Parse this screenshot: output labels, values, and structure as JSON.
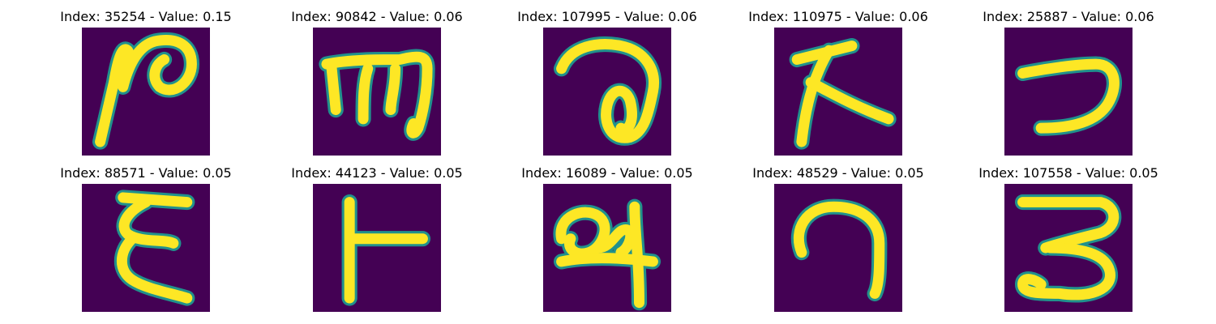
{
  "colors": {
    "background": "#440154",
    "stroke": "#fde725",
    "edge": "#21918c"
  },
  "panels": [
    {
      "title": "Index: 35254 - Value: 0.15",
      "glyph": "hook-loop-glyph"
    },
    {
      "title": "Index: 90842 - Value: 0.06",
      "glyph": "triple-stem-glyph"
    },
    {
      "title": "Index: 107995 - Value: 0.06",
      "glyph": "curl-loop-glyph"
    },
    {
      "title": "Index: 110975 - Value: 0.06",
      "glyph": "slanted-k-glyph"
    },
    {
      "title": "Index: 25887 - Value: 0.06",
      "glyph": "reverse-c-glyph"
    },
    {
      "title": "Index: 88571 - Value: 0.05",
      "glyph": "zigzag-glyph"
    },
    {
      "title": "Index: 44123 - Value: 0.05",
      "glyph": "t-bar-glyph"
    },
    {
      "title": "Index: 16089 - Value: 0.05",
      "glyph": "cursive-loop-glyph"
    },
    {
      "title": "Index: 48529 - Value: 0.05",
      "glyph": "arch-glyph"
    },
    {
      "title": "Index: 107558 - Value: 0.05",
      "glyph": "three-glyph"
    }
  ]
}
